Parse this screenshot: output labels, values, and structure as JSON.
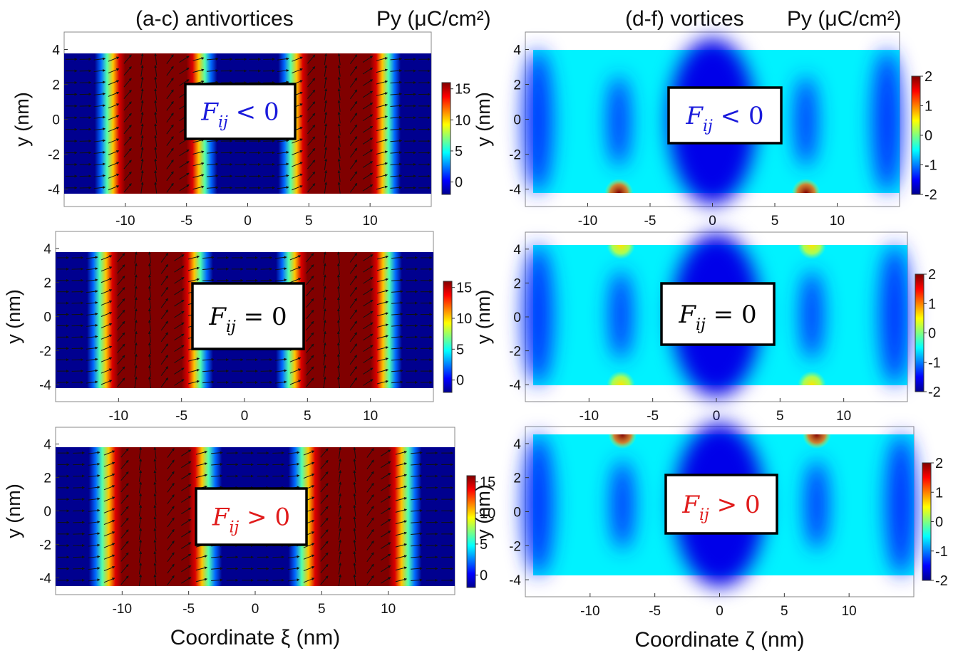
{
  "headers": {
    "left_title": "(a-c) antivortices",
    "left_units": "Py (μC/cm²)",
    "right_title": "(d-f) vortices",
    "right_units": "Py (μC/cm²)"
  },
  "colormap": "jet",
  "chart_data": [
    {
      "id": "a",
      "type": "heatmap",
      "subtype": "antivortices",
      "box_label": "F_ij < 0",
      "box_color": "#1a1adb",
      "x": [
        -15,
        15
      ],
      "y": [
        -4.5,
        4.5
      ],
      "xlim": [
        -15,
        15
      ],
      "ylim": [
        -5,
        5
      ],
      "xticks": [
        "-10",
        "-5",
        "0",
        "5",
        "10"
      ],
      "yticks": [
        "4",
        "2",
        "0",
        "-2",
        "-4"
      ],
      "ylabel": "y (nm)",
      "xlabel": "",
      "colorbar": {
        "ticks": [
          "15",
          "10",
          "5",
          "0"
        ],
        "range": [
          -2,
          16
        ]
      },
      "bands": [
        -7.5,
        7.5
      ],
      "band_value": 16,
      "background_value": -2,
      "arrows": true
    },
    {
      "id": "b",
      "type": "heatmap",
      "subtype": "antivortices",
      "box_label": "F_ij = 0",
      "box_color": "#000000",
      "x": [
        -15,
        15
      ],
      "y": [
        -4.5,
        4.5
      ],
      "xlim": [
        -15,
        15
      ],
      "ylim": [
        -5,
        5
      ],
      "xticks": [
        "-10",
        "-5",
        "0",
        "5",
        "10"
      ],
      "yticks": [
        "4",
        "2",
        "0",
        "-2",
        "-4"
      ],
      "ylabel": "y (nm)",
      "xlabel": "",
      "colorbar": {
        "ticks": [
          "15",
          "10",
          "5",
          "0"
        ],
        "range": [
          -2,
          16
        ]
      },
      "bands": [
        -7.5,
        7.5
      ],
      "band_value": 16,
      "background_value": -2,
      "arrows": true
    },
    {
      "id": "c",
      "type": "heatmap",
      "subtype": "antivortices",
      "box_label": "F_ij > 0",
      "box_color": "#e01b1b",
      "x": [
        -15,
        15
      ],
      "y": [
        -4.5,
        4.5
      ],
      "xlim": [
        -15,
        15
      ],
      "ylim": [
        -5,
        5
      ],
      "xticks": [
        "-10",
        "-5",
        "0",
        "5",
        "10"
      ],
      "yticks": [
        "4",
        "2",
        "0",
        "-2",
        "-4"
      ],
      "ylabel": "y (nm)",
      "xlabel": "Coordinate ξ (nm)",
      "colorbar": {
        "ticks": [
          "15",
          "10",
          "5",
          "0"
        ],
        "range": [
          -2,
          16
        ]
      },
      "bands": [
        -7.5,
        7.5
      ],
      "band_value": 16,
      "background_value": -2,
      "arrows": true
    },
    {
      "id": "d",
      "type": "heatmap",
      "subtype": "vortices",
      "box_label": "F_ij < 0",
      "box_color": "#1a1adb",
      "x": [
        -15,
        15
      ],
      "y": [
        -4.5,
        4.5
      ],
      "xlim": [
        -15,
        15
      ],
      "ylim": [
        -5,
        5
      ],
      "xticks": [
        "-10",
        "-5",
        "0",
        "5",
        "10"
      ],
      "yticks": [
        "4",
        "2",
        "0",
        "-2",
        "-4"
      ],
      "ylabel": "y (nm)",
      "xlabel": "",
      "colorbar": {
        "ticks": [
          "2",
          "1",
          "0",
          "-1",
          "-2"
        ],
        "range": [
          -2,
          2
        ]
      },
      "hotspots": [
        {
          "x": -7.5,
          "y": -4.5,
          "value": 2
        },
        {
          "x": 7.5,
          "y": -4.5,
          "value": 2
        }
      ]
    },
    {
      "id": "e",
      "type": "heatmap",
      "subtype": "vortices",
      "box_label": "F_ij = 0",
      "box_color": "#000000",
      "x": [
        -15,
        15
      ],
      "y": [
        -4.5,
        4.5
      ],
      "xlim": [
        -15,
        15
      ],
      "ylim": [
        -5,
        5
      ],
      "xticks": [
        "-10",
        "-5",
        "0",
        "5",
        "10"
      ],
      "yticks": [
        "4",
        "2",
        "0",
        "-2",
        "-4"
      ],
      "ylabel": "y (nm)",
      "xlabel": "",
      "colorbar": {
        "ticks": [
          "2",
          "1",
          "0",
          "-1",
          "-2"
        ],
        "range": [
          -2,
          2
        ]
      },
      "hotspots": [
        {
          "x": -7.5,
          "y": 4.5,
          "value": 0.6
        },
        {
          "x": 7.5,
          "y": 4.5,
          "value": 0.6
        },
        {
          "x": -7.5,
          "y": -4.5,
          "value": 0.6
        },
        {
          "x": 7.5,
          "y": -4.5,
          "value": 0.6
        }
      ]
    },
    {
      "id": "f",
      "type": "heatmap",
      "subtype": "vortices",
      "box_label": "F_ij > 0",
      "box_color": "#e01b1b",
      "x": [
        -15,
        15
      ],
      "y": [
        -4.5,
        4.5
      ],
      "xlim": [
        -15,
        15
      ],
      "ylim": [
        -5,
        5
      ],
      "xticks": [
        "-10",
        "-5",
        "0",
        "5",
        "10"
      ],
      "yticks": [
        "4",
        "2",
        "0",
        "-2",
        "-4"
      ],
      "ylabel": "y (nm)",
      "xlabel": "Coordinate ζ (nm)",
      "colorbar": {
        "ticks": [
          "2",
          "1",
          "0",
          "-1",
          "-2"
        ],
        "range": [
          -2,
          2
        ]
      },
      "hotspots": [
        {
          "x": -7.5,
          "y": 4.5,
          "value": 2
        },
        {
          "x": 7.5,
          "y": 4.5,
          "value": 2
        }
      ]
    }
  ]
}
